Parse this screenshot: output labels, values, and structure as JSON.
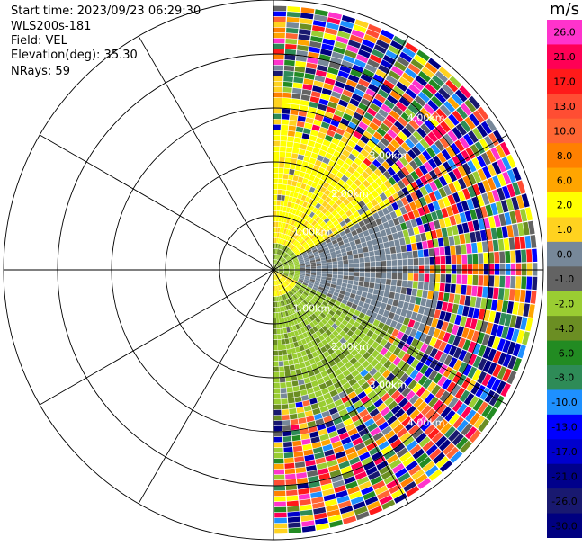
{
  "header": {
    "start_time": "Start time: 2023/09/23 06:29:30",
    "instrument": "WLS200s-181",
    "field": "Field: VEL",
    "elevation": "Elevation(deg): 35.30",
    "nrays": "NRays: 59"
  },
  "chart_data": {
    "type": "heatmap",
    "projection": "polar PPI (right half-plane)",
    "title": "",
    "ring_labels": [
      "1.00km",
      "2.00km",
      "3.00km",
      "4.00km"
    ],
    "colorbar": {
      "unit": "m/s",
      "ticks": [
        "26.0",
        "21.0",
        "17.0",
        "13.0",
        "10.0",
        "8.0",
        "6.0",
        "2.0",
        "1.0",
        "0.0",
        "-1.0",
        "-2.0",
        "-4.0",
        "-6.0",
        "-8.0",
        "-10.0",
        "-13.0",
        "-17.0",
        "-21.0",
        "-26.0",
        "-30.0"
      ],
      "colors": [
        "#ff33cc",
        "#ff0055",
        "#ff1a1a",
        "#ff4d33",
        "#ff6633",
        "#ff8000",
        "#ffa500",
        "#ffff00",
        "#ffd21f",
        "#778899",
        "#636363",
        "#9acd32",
        "#6b8e23",
        "#228b22",
        "#2e8b57",
        "#1e90ff",
        "#0000ff",
        "#0000cd",
        "#00008b",
        "#191970",
        "#000080"
      ]
    },
    "field": "VEL"
  }
}
